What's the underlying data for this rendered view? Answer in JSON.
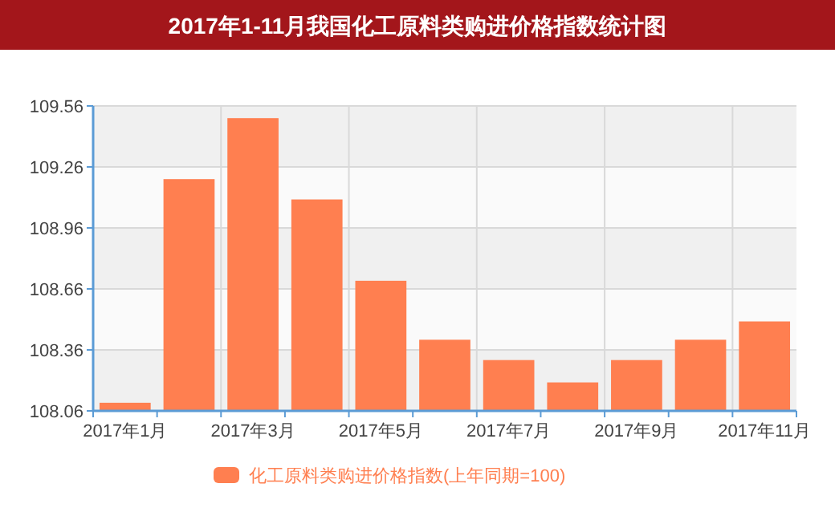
{
  "chart_data": {
    "type": "bar",
    "title": "2017年1-11月我国化工原料类购进价格指数统计图",
    "categories": [
      "2017年1月",
      null,
      "2017年3月",
      null,
      "2017年5月",
      null,
      "2017年7月",
      null,
      "2017年9月",
      null,
      "2017年11月"
    ],
    "series": [
      {
        "name": "化工原料类购进价格指数(上年同期=100)",
        "color": "#ff7f50",
        "values": [
          108.1,
          109.2,
          109.5,
          109.1,
          108.7,
          108.41,
          108.31,
          108.2,
          108.31,
          108.41,
          108.5
        ]
      }
    ],
    "ylim": [
      108.06,
      109.56
    ],
    "yticks": [
      108.06,
      108.36,
      108.66,
      108.96,
      109.26,
      109.56
    ],
    "grid": true,
    "legend": "bottom"
  }
}
